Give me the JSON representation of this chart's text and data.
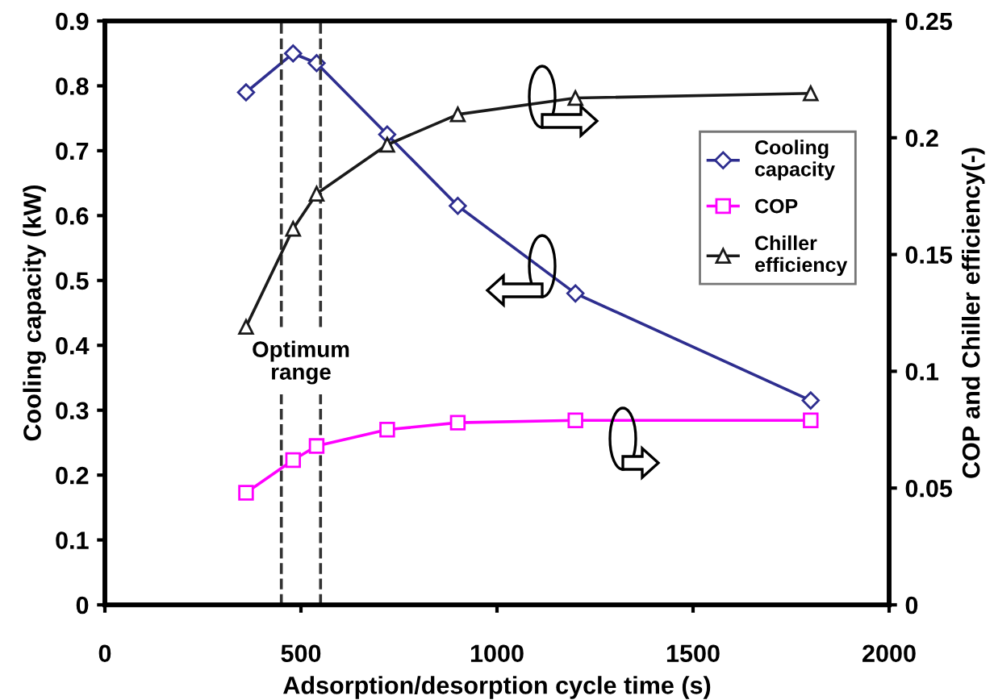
{
  "chart_data": {
    "type": "line",
    "xlabel": "Adsorption/desorption cycle time (s)",
    "ylabel": "Cooling capacity (kW)",
    "y2label": "COP and Chiller efficiency(-)",
    "x": [
      360,
      480,
      540,
      720,
      900,
      1200,
      1800
    ],
    "series": [
      {
        "name": "Cooling capacity",
        "color": "#2e2e8f",
        "marker": "diamond",
        "values": [
          0.79,
          0.85,
          0.835,
          0.725,
          0.615,
          0.48,
          0.315
        ]
      },
      {
        "name": "COP",
        "color": "#ff00ff",
        "marker": "square",
        "axis": "y2",
        "values": [
          0.048,
          0.062,
          0.068,
          0.075,
          0.078,
          0.079,
          0.079
        ]
      },
      {
        "name": "Chiller efficiency",
        "color": "#1a1a1a",
        "marker": "triangle",
        "axis": "y2",
        "values": [
          0.119,
          0.161,
          0.176,
          0.197,
          0.21,
          0.217,
          0.219
        ]
      }
    ],
    "xlim": [
      0,
      2000
    ],
    "xticks": [
      0,
      500,
      1000,
      1500,
      2000
    ],
    "ylim": [
      0,
      0.9
    ],
    "yticks": [
      0,
      0.1,
      0.2,
      0.3,
      0.4,
      0.5,
      0.6,
      0.7,
      0.8,
      0.9
    ],
    "y2lim": [
      0,
      0.25
    ],
    "y2ticks": [
      0,
      0.05,
      0.1,
      0.15,
      0.2,
      0.25
    ],
    "ref_lines": [
      {
        "axis": "x",
        "value": 450,
        "line_style": "dashed",
        "color": "#333333"
      },
      {
        "axis": "x",
        "value": 550,
        "line_style": "dashed",
        "color": "#333333"
      }
    ],
    "annotations": [
      "Optimum\nrange"
    ],
    "legend": "right",
    "grid": false
  }
}
